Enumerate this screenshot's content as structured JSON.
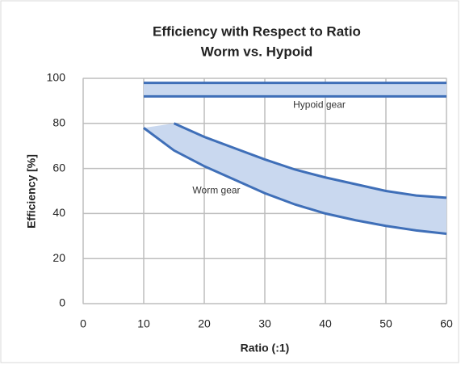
{
  "chart_data": {
    "type": "band",
    "title": [
      "Efficiency with Respect to Ratio",
      "Worm vs. Hypoid"
    ],
    "x_label": "Ratio (:1)",
    "y_label": "Efficiency [%]",
    "xlim": [
      0,
      60
    ],
    "xticks": [
      0,
      10,
      20,
      30,
      40,
      50,
      60
    ],
    "ylim": [
      0,
      100
    ],
    "yticks": [
      0,
      20,
      40,
      60,
      80,
      100
    ],
    "grid": true,
    "bands": [
      {
        "label": "Hypoid gear",
        "color": "#3f6fb8",
        "fill": "#c9d8ef",
        "x": [
          10,
          60
        ],
        "upper": [
          98,
          98
        ],
        "lower": [
          92,
          92
        ]
      },
      {
        "label": "Worm gear",
        "color": "#3f6fb8",
        "fill": "#c9d8ef",
        "x": [
          10,
          15,
          20,
          25,
          30,
          35,
          40,
          45,
          50,
          55,
          60
        ],
        "upper": [
          null,
          80,
          74,
          69,
          64,
          59.5,
          56,
          53,
          50,
          48,
          47
        ],
        "lower": [
          78,
          68,
          61,
          55,
          49,
          44,
          40,
          37,
          34.5,
          32.5,
          31
        ]
      }
    ]
  }
}
